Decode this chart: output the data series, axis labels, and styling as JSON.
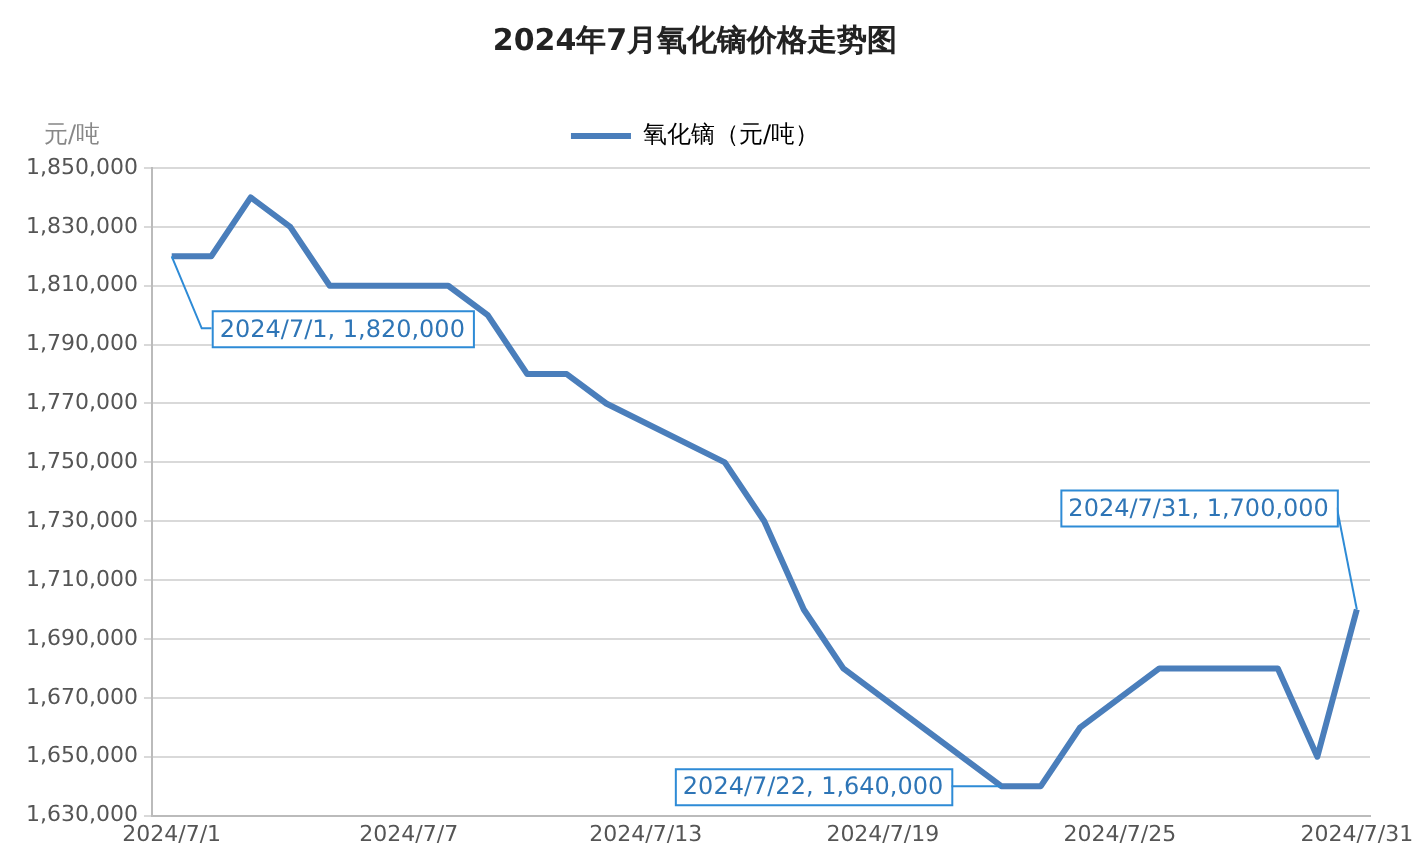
{
  "chart_data": {
    "type": "line",
    "title": "2024年7月氧化镝价格走势图",
    "ylabel": "元/吨",
    "x": [
      "2024-07-01",
      "2024-07-02",
      "2024-07-03",
      "2024-07-04",
      "2024-07-05",
      "2024-07-08",
      "2024-07-09",
      "2024-07-10",
      "2024-07-11",
      "2024-07-12",
      "2024-07-15",
      "2024-07-16",
      "2024-07-17",
      "2024-07-18",
      "2024-07-22",
      "2024-07-23",
      "2024-07-24",
      "2024-07-26",
      "2024-07-29",
      "2024-07-30",
      "2024-07-31"
    ],
    "series": [
      {
        "name": "氧化镝（元/吨）",
        "color": "#4a7ebb",
        "values": [
          1820000,
          1820000,
          1840000,
          1830000,
          1810000,
          1810000,
          1800000,
          1780000,
          1780000,
          1770000,
          1750000,
          1730000,
          1700000,
          1680000,
          1640000,
          1640000,
          1660000,
          1680000,
          1680000,
          1650000,
          1700000
        ]
      }
    ],
    "xlim": [
      "2024-06-30T12:00",
      "2024-07-31T08:00"
    ],
    "xticks": [
      {
        "value": "2024-07-01",
        "label": "2024/7/1"
      },
      {
        "value": "2024-07-07",
        "label": "2024/7/7"
      },
      {
        "value": "2024-07-13",
        "label": "2024/7/13"
      },
      {
        "value": "2024-07-19",
        "label": "2024/7/19"
      },
      {
        "value": "2024-07-25",
        "label": "2024/7/25"
      },
      {
        "value": "2024-07-31",
        "label": "2024/7/31"
      }
    ],
    "ylim": [
      1630000,
      1850000
    ],
    "yticks": [
      {
        "value": 1630000,
        "label": "1,630,000"
      },
      {
        "value": 1650000,
        "label": "1,650,000"
      },
      {
        "value": 1670000,
        "label": "1,670,000"
      },
      {
        "value": 1690000,
        "label": "1,690,000"
      },
      {
        "value": 1710000,
        "label": "1,710,000"
      },
      {
        "value": 1730000,
        "label": "1,730,000"
      },
      {
        "value": 1750000,
        "label": "1,750,000"
      },
      {
        "value": 1770000,
        "label": "1,770,000"
      },
      {
        "value": 1790000,
        "label": "1,790,000"
      },
      {
        "value": 1810000,
        "label": "1,810,000"
      },
      {
        "value": 1830000,
        "label": "1,830,000"
      },
      {
        "value": 1850000,
        "label": "1,850,000"
      }
    ],
    "annotations": [
      {
        "text": "2024/7/1, 1,820,000",
        "x": "2024-07-01",
        "y": 1820000
      },
      {
        "text": "2024/7/22, 1,640,000",
        "x": "2024-07-22",
        "y": 1640000
      },
      {
        "text": "2024/7/31, 1,700,000",
        "x": "2024-07-31",
        "y": 1700000
      }
    ],
    "grid": "y",
    "legend": "top",
    "marker": "none",
    "line_style": "solid"
  }
}
